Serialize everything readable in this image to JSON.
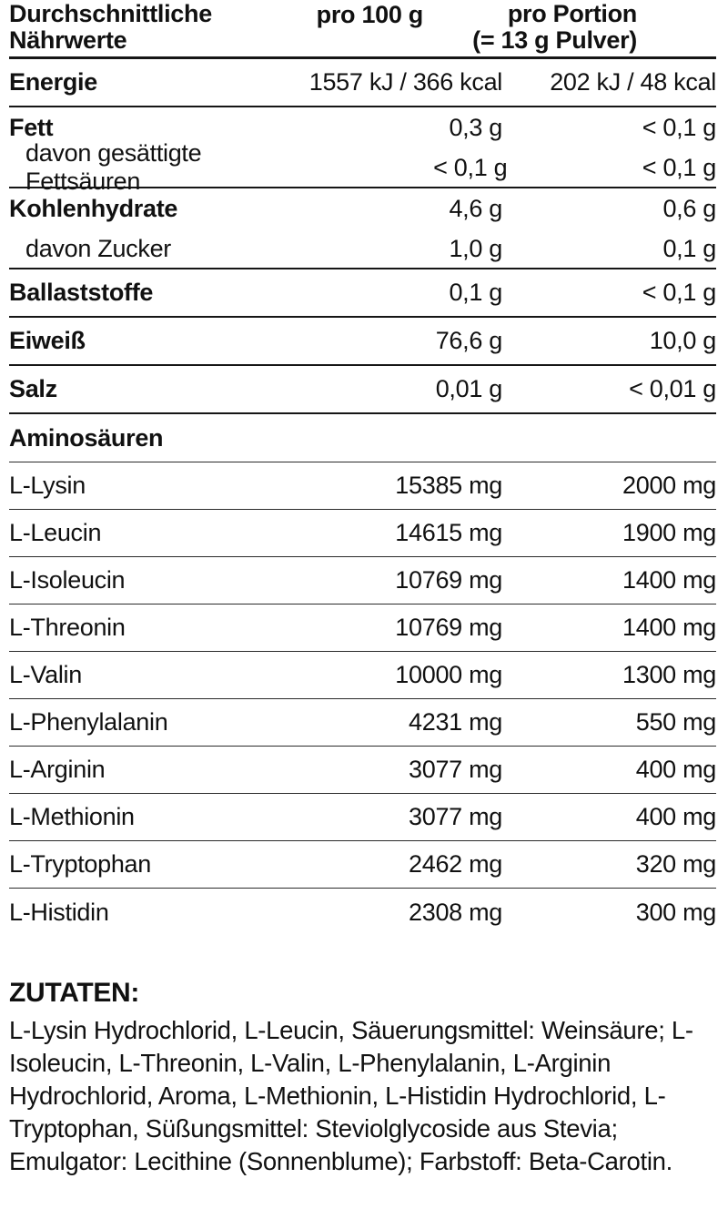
{
  "header": {
    "col_label": "Durchschnittliche Nährwerte",
    "col_per100": "pro 100 g",
    "col_portion_line1": "pro Portion",
    "col_portion_line2": "(= 13 g Pulver)"
  },
  "rows": [
    {
      "label": "Energie",
      "per100": "1557 kJ / 366 kcal",
      "portion": "202 kJ / 48 kcal",
      "variant": "main",
      "sep": "section"
    },
    {
      "label": "Fett",
      "per100": "0,3 g",
      "portion": "< 0,1 g",
      "variant": "group",
      "sep": "none"
    },
    {
      "label": "davon gesättigte Fettsäuren",
      "per100": "< 0,1 g",
      "portion": "< 0,1 g",
      "variant": "sub",
      "sep": "section"
    },
    {
      "label": "Kohlenhydrate",
      "per100": "4,6 g",
      "portion": "0,6 g",
      "variant": "group",
      "sep": "none"
    },
    {
      "label": "davon Zucker",
      "per100": "1,0 g",
      "portion": "0,1 g",
      "variant": "sub",
      "sep": "section"
    },
    {
      "label": "Ballaststoffe",
      "per100": "0,1 g",
      "portion": "< 0,1 g",
      "variant": "main",
      "sep": "section"
    },
    {
      "label": "Eiweiß",
      "per100": "76,6 g",
      "portion": "10,0 g",
      "variant": "main",
      "sep": "section"
    },
    {
      "label": "Salz",
      "per100": "0,01 g",
      "portion": "< 0,01 g",
      "variant": "main",
      "sep": "section"
    },
    {
      "label": "Aminosäuren",
      "per100": "",
      "portion": "",
      "variant": "title",
      "sep": "thin"
    },
    {
      "label": "L-Lysin",
      "per100": "15385 mg",
      "portion": "2000 mg",
      "variant": "amino",
      "sep": "thin"
    },
    {
      "label": "L-Leucin",
      "per100": "14615 mg",
      "portion": "1900 mg",
      "variant": "amino",
      "sep": "thin"
    },
    {
      "label": "L-Isoleucin",
      "per100": "10769 mg",
      "portion": "1400 mg",
      "variant": "amino",
      "sep": "thin"
    },
    {
      "label": "L-Threonin",
      "per100": "10769 mg",
      "portion": "1400 mg",
      "variant": "amino",
      "sep": "thin"
    },
    {
      "label": "L-Valin",
      "per100": "10000 mg",
      "portion": "1300 mg",
      "variant": "amino",
      "sep": "thin"
    },
    {
      "label": "L-Phenylalanin",
      "per100": "4231 mg",
      "portion": "550 mg",
      "variant": "amino",
      "sep": "thin"
    },
    {
      "label": "L-Arginin",
      "per100": "3077 mg",
      "portion": "400 mg",
      "variant": "amino",
      "sep": "thin"
    },
    {
      "label": "L-Methionin",
      "per100": "3077 mg",
      "portion": "400 mg",
      "variant": "amino",
      "sep": "thin"
    },
    {
      "label": "L-Tryptophan",
      "per100": "2462 mg",
      "portion": "320 mg",
      "variant": "amino",
      "sep": "thin"
    },
    {
      "label": "L-Histidin",
      "per100": "2308 mg",
      "portion": "300 mg",
      "variant": "amino",
      "sep": "none"
    }
  ],
  "ingredients": {
    "title": "ZUTATEN:",
    "text": "L-Lysin Hydrochlorid, L-Leucin, Säuerungsmittel: Weinsäure; L-Isoleucin, L-Threonin, L-Valin, L-Phenylalanin, L-Arginin Hydrochlorid, Aroma, L-Methionin, L-Histidin Hydrochlorid, L-Tryptophan, Süßungsmittel: Steviolglycoside aus Stevia; Emulgator: Lecithine (Sonnenblume); Farbstoff: Beta-Carotin."
  },
  "colors": {
    "text": "#111111",
    "rule": "#161616",
    "background": "#ffffff"
  }
}
